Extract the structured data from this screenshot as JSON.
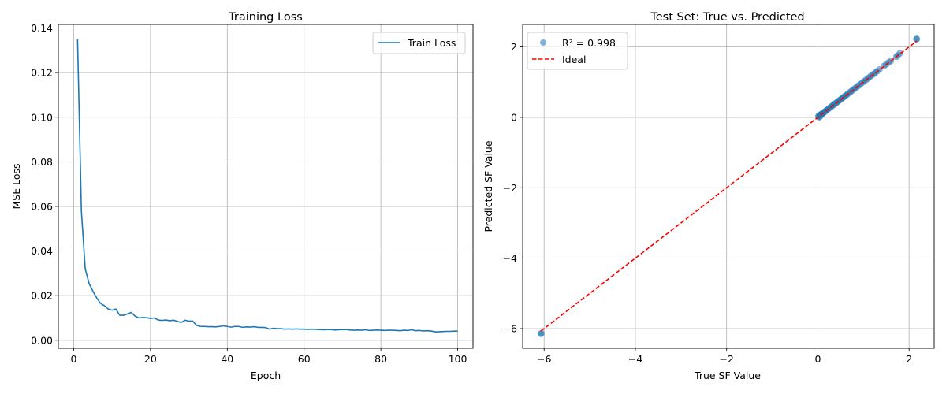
{
  "chart_data": [
    {
      "type": "line",
      "title": "Training Loss",
      "xlabel": "Epoch",
      "ylabel": "MSE Loss",
      "xlim": [
        -4,
        104
      ],
      "ylim": [
        -0.0036,
        0.1416
      ],
      "xticks": [
        0,
        20,
        40,
        60,
        80,
        100
      ],
      "xtick_labels": [
        "0",
        "20",
        "40",
        "60",
        "80",
        "100"
      ],
      "yticks": [
        0.0,
        0.02,
        0.04,
        0.06,
        0.08,
        0.1,
        0.12,
        0.14
      ],
      "ytick_labels": [
        "0.00",
        "0.02",
        "0.04",
        "0.06",
        "0.08",
        "0.10",
        "0.12",
        "0.14"
      ],
      "grid": true,
      "legend_position": "top-right",
      "series": [
        {
          "name": "Train Loss",
          "color": "#1f77b4",
          "x": [
            1,
            2,
            3,
            4,
            5,
            6,
            7,
            8,
            9,
            10,
            11,
            12,
            13,
            14,
            15,
            16,
            17,
            18,
            19,
            20,
            21,
            22,
            23,
            24,
            25,
            26,
            27,
            28,
            29,
            30,
            31,
            32,
            33,
            34,
            35,
            36,
            37,
            38,
            39,
            40,
            41,
            42,
            43,
            44,
            45,
            46,
            47,
            48,
            49,
            50,
            51,
            52,
            53,
            54,
            55,
            56,
            57,
            58,
            59,
            60,
            61,
            62,
            63,
            64,
            65,
            66,
            67,
            68,
            69,
            70,
            71,
            72,
            73,
            74,
            75,
            76,
            77,
            78,
            79,
            80,
            81,
            82,
            83,
            84,
            85,
            86,
            87,
            88,
            89,
            90,
            91,
            92,
            93,
            94,
            95,
            96,
            97,
            98,
            99,
            100
          ],
          "y": [
            0.135,
            0.058,
            0.032,
            0.0255,
            0.022,
            0.019,
            0.0165,
            0.0155,
            0.014,
            0.0135,
            0.014,
            0.0112,
            0.0112,
            0.0118,
            0.0125,
            0.0108,
            0.01,
            0.0102,
            0.0101,
            0.0098,
            0.01,
            0.0091,
            0.0089,
            0.0091,
            0.0088,
            0.009,
            0.0085,
            0.008,
            0.009,
            0.0086,
            0.0086,
            0.0067,
            0.0062,
            0.0062,
            0.0061,
            0.0061,
            0.006,
            0.0062,
            0.0065,
            0.0062,
            0.0059,
            0.0062,
            0.0062,
            0.0058,
            0.006,
            0.0059,
            0.0061,
            0.0058,
            0.0058,
            0.0057,
            0.005,
            0.0054,
            0.0052,
            0.0052,
            0.005,
            0.0051,
            0.005,
            0.0051,
            0.005,
            0.005,
            0.0049,
            0.005,
            0.0049,
            0.0048,
            0.0047,
            0.0048,
            0.0048,
            0.0046,
            0.0047,
            0.0048,
            0.0048,
            0.0046,
            0.0045,
            0.0046,
            0.0045,
            0.0047,
            0.0044,
            0.0045,
            0.0046,
            0.0045,
            0.0044,
            0.0045,
            0.0045,
            0.0044,
            0.0043,
            0.0045,
            0.0044,
            0.0047,
            0.0043,
            0.0044,
            0.0042,
            0.0043,
            0.0042,
            0.0038,
            0.0038,
            0.0039,
            0.004,
            0.004,
            0.0041,
            0.0041
          ]
        }
      ]
    },
    {
      "type": "scatter",
      "title": "Test Set: True vs. Predicted",
      "xlabel": "True SF Value",
      "ylabel": "Predicted SF Value",
      "xlim": [
        -6.47,
        2.55
      ],
      "ylim": [
        -6.56,
        2.64
      ],
      "xticks": [
        -6,
        -4,
        -2,
        0,
        2
      ],
      "xtick_labels": [
        "−6",
        "−4",
        "−2",
        "0",
        "2"
      ],
      "yticks": [
        -6,
        -4,
        -2,
        0,
        2
      ],
      "ytick_labels": [
        "−6",
        "−4",
        "−2",
        "0",
        "2"
      ],
      "grid": true,
      "legend_position": "top-left",
      "series": [
        {
          "name": "R² = 0.998",
          "kind": "scatter",
          "color": "#1f77b4",
          "x": [
            -6.07,
            -6.06,
            0.01,
            0.02,
            0.03,
            0.04,
            0.05,
            0.06,
            0.07,
            0.08,
            0.1,
            0.12,
            0.14,
            0.16,
            0.18,
            0.2,
            0.22,
            0.25,
            0.28,
            0.3,
            0.33,
            0.35,
            0.38,
            0.4,
            0.43,
            0.45,
            0.48,
            0.5,
            0.53,
            0.55,
            0.58,
            0.6,
            0.63,
            0.66,
            0.7,
            0.73,
            0.76,
            0.8,
            0.83,
            0.87,
            0.9,
            0.94,
            0.98,
            1.02,
            1.06,
            1.1,
            1.14,
            1.18,
            1.22,
            1.26,
            1.3,
            1.35,
            1.45,
            1.5,
            1.55,
            1.6,
            1.72,
            1.75,
            1.8,
            2.16,
            2.17
          ],
          "y": [
            -6.15,
            -6.13,
            0.02,
            0.05,
            0.0,
            0.06,
            0.03,
            0.07,
            0.09,
            0.08,
            0.11,
            0.12,
            0.15,
            0.17,
            0.19,
            0.21,
            0.23,
            0.26,
            0.29,
            0.31,
            0.34,
            0.36,
            0.39,
            0.41,
            0.44,
            0.46,
            0.49,
            0.51,
            0.54,
            0.56,
            0.59,
            0.61,
            0.64,
            0.67,
            0.71,
            0.74,
            0.77,
            0.81,
            0.84,
            0.88,
            0.91,
            0.95,
            0.99,
            1.03,
            1.07,
            1.11,
            1.15,
            1.19,
            1.23,
            1.27,
            1.31,
            1.36,
            1.46,
            1.51,
            1.56,
            1.6,
            1.72,
            1.76,
            1.82,
            2.22,
            2.23
          ]
        },
        {
          "name": "Ideal",
          "kind": "line",
          "style": "dashed",
          "color": "#ff0000",
          "x": [
            -6.07,
            2.17
          ],
          "y": [
            -6.07,
            2.17
          ]
        }
      ]
    }
  ]
}
